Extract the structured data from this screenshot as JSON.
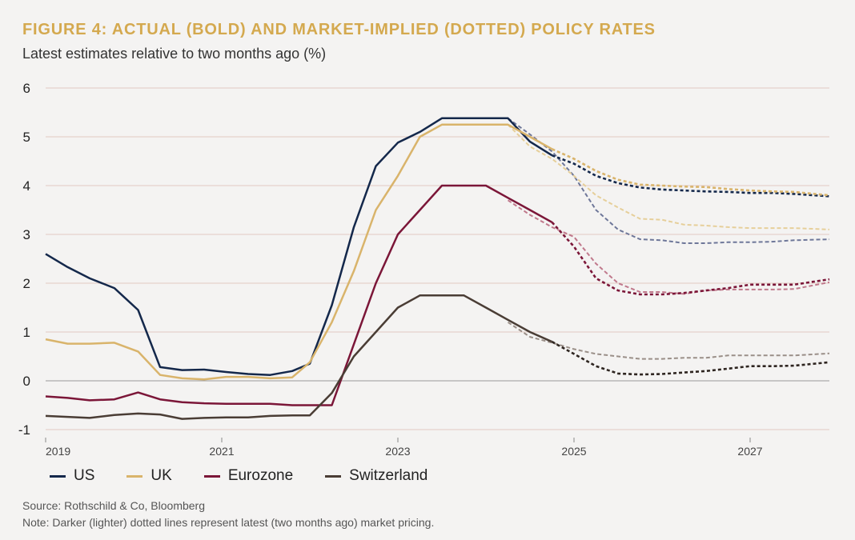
{
  "header": {
    "title": "FIGURE 4: ACTUAL (BOLD) AND MARKET-IMPLIED (DOTTED) POLICY RATES",
    "subtitle": "Latest estimates relative to two months ago (%)"
  },
  "footer": {
    "source": "Source: Rothschild & Co, Bloomberg",
    "note": "Note: Darker (lighter) dotted lines represent latest (two months ago) market pricing."
  },
  "chart_data": {
    "type": "line",
    "title": "FIGURE 4: ACTUAL (BOLD) AND MARKET-IMPLIED (DOTTED) POLICY RATES",
    "subtitle": "Latest estimates relative to two months ago (%)",
    "xlabel": "",
    "ylabel": "",
    "xlim": [
      2019.0,
      2027.9
    ],
    "ylim": [
      -1,
      6
    ],
    "yticks": [
      -1,
      0,
      1,
      2,
      3,
      4,
      5,
      6
    ],
    "yticklabels": [
      "-1",
      "0",
      "1",
      "2",
      "3",
      "4",
      "5",
      "6"
    ],
    "xticks": [
      2019,
      2021,
      2023,
      2025,
      2027
    ],
    "xticklabels": [
      "2019",
      "2021",
      "2023",
      "2025",
      "2027"
    ],
    "grid": "horizontal",
    "legend": "bottom-left",
    "series": [
      {
        "name": "US",
        "color": "#14284b",
        "style": "solid",
        "points": [
          [
            2019.0,
            2.6
          ],
          [
            2019.25,
            2.33
          ],
          [
            2019.5,
            2.1
          ],
          [
            2019.78,
            1.9
          ],
          [
            2020.05,
            1.45
          ],
          [
            2020.3,
            0.28
          ],
          [
            2020.55,
            0.22
          ],
          [
            2020.8,
            0.23
          ],
          [
            2021.05,
            0.18
          ],
          [
            2021.3,
            0.14
          ],
          [
            2021.55,
            0.12
          ],
          [
            2021.8,
            0.2
          ],
          [
            2022.0,
            0.35
          ],
          [
            2022.25,
            1.55
          ],
          [
            2022.5,
            3.15
          ],
          [
            2022.75,
            4.4
          ],
          [
            2023.0,
            4.88
          ],
          [
            2023.25,
            5.1
          ],
          [
            2023.5,
            5.38
          ],
          [
            2023.75,
            5.38
          ],
          [
            2024.0,
            5.38
          ],
          [
            2024.25,
            5.38
          ],
          [
            2024.5,
            4.9
          ],
          [
            2024.75,
            4.62
          ]
        ]
      },
      {
        "name": "UK",
        "color": "#d9b46b",
        "style": "solid",
        "points": [
          [
            2019.0,
            0.85
          ],
          [
            2019.25,
            0.76
          ],
          [
            2019.5,
            0.76
          ],
          [
            2019.78,
            0.78
          ],
          [
            2020.05,
            0.6
          ],
          [
            2020.3,
            0.12
          ],
          [
            2020.55,
            0.05
          ],
          [
            2020.8,
            0.03
          ],
          [
            2021.05,
            0.08
          ],
          [
            2021.3,
            0.08
          ],
          [
            2021.55,
            0.05
          ],
          [
            2021.8,
            0.07
          ],
          [
            2022.0,
            0.38
          ],
          [
            2022.25,
            1.2
          ],
          [
            2022.5,
            2.25
          ],
          [
            2022.75,
            3.5
          ],
          [
            2023.0,
            4.2
          ],
          [
            2023.25,
            5.0
          ],
          [
            2023.5,
            5.25
          ],
          [
            2023.75,
            5.25
          ],
          [
            2024.0,
            5.25
          ],
          [
            2024.25,
            5.25
          ],
          [
            2024.5,
            5.0
          ],
          [
            2024.75,
            4.75
          ]
        ]
      },
      {
        "name": "Eurozone",
        "color": "#7b1638",
        "style": "solid",
        "points": [
          [
            2019.0,
            -0.32
          ],
          [
            2019.25,
            -0.35
          ],
          [
            2019.5,
            -0.4
          ],
          [
            2019.78,
            -0.38
          ],
          [
            2020.05,
            -0.24
          ],
          [
            2020.3,
            -0.38
          ],
          [
            2020.55,
            -0.44
          ],
          [
            2020.8,
            -0.46
          ],
          [
            2021.05,
            -0.47
          ],
          [
            2021.3,
            -0.47
          ],
          [
            2021.55,
            -0.47
          ],
          [
            2021.8,
            -0.5
          ],
          [
            2022.0,
            -0.5
          ],
          [
            2022.25,
            -0.5
          ],
          [
            2022.5,
            0.75
          ],
          [
            2022.75,
            2.0
          ],
          [
            2023.0,
            3.0
          ],
          [
            2023.25,
            3.5
          ],
          [
            2023.5,
            4.0
          ],
          [
            2023.75,
            4.0
          ],
          [
            2024.0,
            4.0
          ],
          [
            2024.25,
            3.75
          ],
          [
            2024.5,
            3.5
          ],
          [
            2024.75,
            3.25
          ]
        ]
      },
      {
        "name": "Switzerland",
        "color": "#4a3d35",
        "style": "solid",
        "points": [
          [
            2019.0,
            -0.72
          ],
          [
            2019.25,
            -0.74
          ],
          [
            2019.5,
            -0.76
          ],
          [
            2019.78,
            -0.7
          ],
          [
            2020.05,
            -0.67
          ],
          [
            2020.3,
            -0.69
          ],
          [
            2020.55,
            -0.78
          ],
          [
            2020.8,
            -0.76
          ],
          [
            2021.05,
            -0.75
          ],
          [
            2021.3,
            -0.75
          ],
          [
            2021.55,
            -0.72
          ],
          [
            2021.8,
            -0.71
          ],
          [
            2022.0,
            -0.71
          ],
          [
            2022.25,
            -0.25
          ],
          [
            2022.5,
            0.5
          ],
          [
            2022.75,
            1.0
          ],
          [
            2023.0,
            1.5
          ],
          [
            2023.25,
            1.75
          ],
          [
            2023.5,
            1.75
          ],
          [
            2023.75,
            1.75
          ],
          [
            2024.0,
            1.5
          ],
          [
            2024.25,
            1.25
          ],
          [
            2024.5,
            1.0
          ],
          [
            2024.75,
            0.8
          ]
        ]
      },
      {
        "name": "US (two months ago)",
        "color": "#6e7799",
        "style": "dotted-light",
        "points": [
          [
            2024.25,
            5.38
          ],
          [
            2024.5,
            5.05
          ],
          [
            2024.75,
            4.7
          ],
          [
            2025.0,
            4.2
          ],
          [
            2025.25,
            3.5
          ],
          [
            2025.5,
            3.1
          ],
          [
            2025.75,
            2.9
          ],
          [
            2026.0,
            2.88
          ],
          [
            2026.25,
            2.82
          ],
          [
            2026.5,
            2.82
          ],
          [
            2026.75,
            2.84
          ],
          [
            2027.0,
            2.84
          ],
          [
            2027.25,
            2.85
          ],
          [
            2027.5,
            2.88
          ],
          [
            2027.9,
            2.9
          ]
        ]
      },
      {
        "name": "US (latest)",
        "color": "#14284b",
        "style": "dotted-dark",
        "points": [
          [
            2024.75,
            4.62
          ],
          [
            2025.0,
            4.45
          ],
          [
            2025.25,
            4.2
          ],
          [
            2025.5,
            4.05
          ],
          [
            2025.75,
            3.96
          ],
          [
            2026.0,
            3.92
          ],
          [
            2026.25,
            3.9
          ],
          [
            2026.5,
            3.88
          ],
          [
            2026.75,
            3.87
          ],
          [
            2027.0,
            3.85
          ],
          [
            2027.25,
            3.85
          ],
          [
            2027.5,
            3.83
          ],
          [
            2027.9,
            3.78
          ]
        ]
      },
      {
        "name": "UK (two months ago)",
        "color": "#e6cf9a",
        "style": "dotted-light",
        "points": [
          [
            2024.25,
            5.25
          ],
          [
            2024.5,
            4.8
          ],
          [
            2024.75,
            4.55
          ],
          [
            2025.0,
            4.2
          ],
          [
            2025.25,
            3.8
          ],
          [
            2025.5,
            3.55
          ],
          [
            2025.75,
            3.32
          ],
          [
            2026.0,
            3.3
          ],
          [
            2026.25,
            3.2
          ],
          [
            2026.5,
            3.18
          ],
          [
            2026.75,
            3.15
          ],
          [
            2027.0,
            3.13
          ],
          [
            2027.25,
            3.13
          ],
          [
            2027.5,
            3.13
          ],
          [
            2027.9,
            3.1
          ]
        ]
      },
      {
        "name": "UK (latest)",
        "color": "#d9b46b",
        "style": "dotted-dark",
        "points": [
          [
            2024.75,
            4.75
          ],
          [
            2025.0,
            4.55
          ],
          [
            2025.25,
            4.3
          ],
          [
            2025.5,
            4.12
          ],
          [
            2025.75,
            4.02
          ],
          [
            2026.0,
            4.0
          ],
          [
            2026.25,
            3.98
          ],
          [
            2026.5,
            3.97
          ],
          [
            2026.75,
            3.93
          ],
          [
            2027.0,
            3.9
          ],
          [
            2027.25,
            3.88
          ],
          [
            2027.5,
            3.87
          ],
          [
            2027.9,
            3.8
          ]
        ]
      },
      {
        "name": "Eurozone (two months ago)",
        "color": "#c0798c",
        "style": "dotted-light",
        "points": [
          [
            2024.25,
            3.7
          ],
          [
            2024.5,
            3.4
          ],
          [
            2024.75,
            3.15
          ],
          [
            2025.0,
            2.95
          ],
          [
            2025.25,
            2.4
          ],
          [
            2025.5,
            2.0
          ],
          [
            2025.75,
            1.82
          ],
          [
            2026.0,
            1.82
          ],
          [
            2026.25,
            1.78
          ],
          [
            2026.5,
            1.85
          ],
          [
            2026.75,
            1.87
          ],
          [
            2027.0,
            1.87
          ],
          [
            2027.25,
            1.87
          ],
          [
            2027.5,
            1.88
          ],
          [
            2027.9,
            2.02
          ]
        ]
      },
      {
        "name": "Eurozone (latest)",
        "color": "#7b1638",
        "style": "dotted-dark",
        "points": [
          [
            2024.75,
            3.25
          ],
          [
            2025.0,
            2.75
          ],
          [
            2025.25,
            2.1
          ],
          [
            2025.5,
            1.85
          ],
          [
            2025.75,
            1.77
          ],
          [
            2026.0,
            1.77
          ],
          [
            2026.25,
            1.8
          ],
          [
            2026.5,
            1.85
          ],
          [
            2026.75,
            1.9
          ],
          [
            2027.0,
            1.97
          ],
          [
            2027.25,
            1.97
          ],
          [
            2027.5,
            1.97
          ],
          [
            2027.9,
            2.08
          ]
        ]
      },
      {
        "name": "Switzerland (two months ago)",
        "color": "#9a8f88",
        "style": "dotted-light",
        "points": [
          [
            2024.25,
            1.2
          ],
          [
            2024.5,
            0.9
          ],
          [
            2024.75,
            0.78
          ],
          [
            2025.0,
            0.65
          ],
          [
            2025.25,
            0.55
          ],
          [
            2025.5,
            0.5
          ],
          [
            2025.75,
            0.45
          ],
          [
            2026.0,
            0.45
          ],
          [
            2026.25,
            0.47
          ],
          [
            2026.5,
            0.47
          ],
          [
            2026.75,
            0.52
          ],
          [
            2027.0,
            0.52
          ],
          [
            2027.25,
            0.52
          ],
          [
            2027.5,
            0.52
          ],
          [
            2027.9,
            0.56
          ]
        ]
      },
      {
        "name": "Switzerland (latest)",
        "color": "#2e2520",
        "style": "dotted-dark",
        "points": [
          [
            2024.75,
            0.8
          ],
          [
            2025.0,
            0.55
          ],
          [
            2025.25,
            0.3
          ],
          [
            2025.5,
            0.15
          ],
          [
            2025.75,
            0.13
          ],
          [
            2026.0,
            0.14
          ],
          [
            2026.25,
            0.17
          ],
          [
            2026.5,
            0.2
          ],
          [
            2026.75,
            0.25
          ],
          [
            2027.0,
            0.3
          ],
          [
            2027.25,
            0.3
          ],
          [
            2027.5,
            0.31
          ],
          [
            2027.9,
            0.38
          ]
        ]
      }
    ]
  },
  "legend": {
    "items": [
      {
        "label": "US",
        "color": "#14284b"
      },
      {
        "label": "UK",
        "color": "#d9b46b"
      },
      {
        "label": "Eurozone",
        "color": "#7b1638"
      },
      {
        "label": "Switzerland",
        "color": "#4a3d35"
      }
    ]
  }
}
